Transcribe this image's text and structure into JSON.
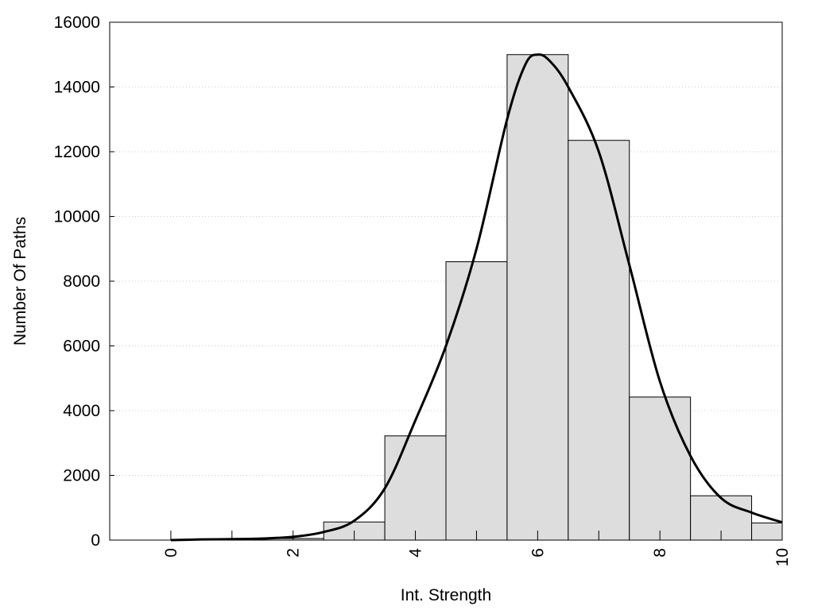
{
  "chart_data": {
    "type": "bar",
    "title": "",
    "xlabel": "Int. Strength",
    "ylabel": "Number Of Paths",
    "xlim": [
      -1,
      10
    ],
    "ylim": [
      0,
      16000
    ],
    "xticks": [
      0,
      2,
      4,
      6,
      8,
      10
    ],
    "yticks": [
      0,
      2000,
      4000,
      6000,
      8000,
      10000,
      12000,
      14000,
      16000
    ],
    "grid": "horizontal dotted",
    "bars": {
      "centers": [
        0,
        1,
        2,
        3,
        4,
        5,
        6,
        7,
        8,
        9,
        10
      ],
      "values": [
        0,
        0,
        50,
        560,
        3220,
        8600,
        15000,
        12350,
        4420,
        1370,
        530
      ]
    },
    "curve": {
      "x": [
        0,
        0.5,
        1,
        1.5,
        2,
        2.5,
        3,
        3.5,
        4,
        4.5,
        5,
        5.5,
        5.8,
        6,
        6.2,
        6.5,
        7,
        7.5,
        8,
        8.5,
        9,
        9.5,
        10
      ],
      "y": [
        0,
        20,
        30,
        50,
        100,
        250,
        600,
        1600,
        3700,
        6000,
        9000,
        13000,
        14700,
        15000,
        14800,
        14000,
        12000,
        8500,
        4900,
        2600,
        1300,
        850,
        550
      ]
    },
    "colors": {
      "bar_fill": "#dddddd",
      "bar_stroke": "#000000",
      "curve": "#000000",
      "grid": "#cccccc"
    }
  }
}
